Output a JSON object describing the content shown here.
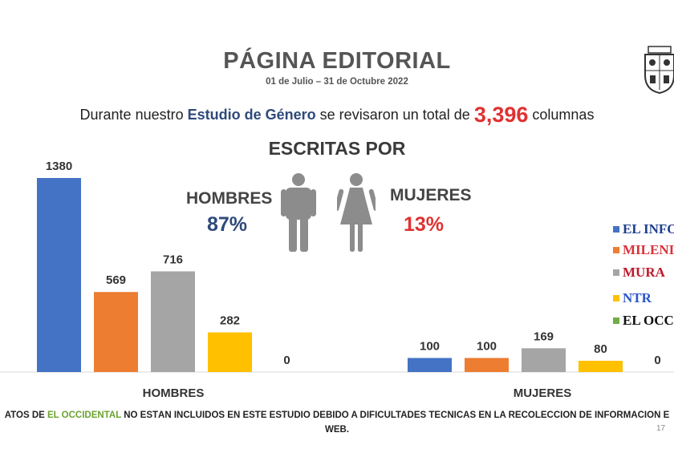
{
  "header": {
    "title": "PÁGINA EDITORIAL",
    "dates": "01 de Julio – 31 de Octubre 2022",
    "intro_prefix": "Durante nuestro",
    "intro_highlight": "Estudio de Género",
    "intro_mid": "se revisaron un total de",
    "intro_total": "3,396",
    "intro_suffix": "columnas",
    "subtitle": "ESCRITAS POR"
  },
  "gender": {
    "men_label": "HOMBRES",
    "men_pct": "87%",
    "women_label": "MUJERES",
    "women_pct": "13%"
  },
  "icons": {
    "men": "man-icon",
    "women": "woman-icon",
    "seal": "university-seal-icon"
  },
  "colors": {
    "el_informador": "#4472c4",
    "milenio": "#ed7d31",
    "mural": "#a5a5a5",
    "ntr": "#ffc000",
    "el_occidental": "#70ad47",
    "accent_blue": "#2e4a7a",
    "accent_red": "#e03131"
  },
  "legend": {
    "items": [
      {
        "text": "EL INFO",
        "color": "#4472c4",
        "text_color": "#1f3f8f"
      },
      {
        "text": "MILENI",
        "color": "#ed7d31",
        "text_color": "#d9313b"
      },
      {
        "text": "MURA",
        "color": "#a5a5a5",
        "text_color": "#c0182a"
      },
      {
        "text": "NTR",
        "color": "#ffc000",
        "text_color": "#2b56c8"
      },
      {
        "text": "EL OCCI",
        "color": "#70ad47",
        "text_color": "#111111"
      }
    ]
  },
  "chart_data": {
    "type": "bar",
    "categories": [
      "HOMBRES",
      "MUJERES"
    ],
    "series": [
      {
        "color": "#4472c4",
        "values": [
          1380,
          100
        ]
      },
      {
        "color": "#ed7d31",
        "values": [
          569,
          100
        ]
      },
      {
        "color": "#a5a5a5",
        "values": [
          716,
          169
        ]
      },
      {
        "color": "#ffc000",
        "values": [
          282,
          80
        ]
      },
      {
        "color": "#70ad47",
        "values": [
          0,
          0
        ]
      }
    ],
    "ylim": [
      0,
      1380
    ],
    "grid": false,
    "legend_position": "right"
  },
  "footnote": {
    "prefix": "ATOS DE",
    "highlight": "EL OCCIDENTAL",
    "suffix": "NO ESTÁN INCLUIDOS EN ESTE ESTUDIO DEBIDO A DIFICULTADES TÉCNICAS EN LA RECOLECCIÓN DE INFORMACIÓN E",
    "line2": "WEB."
  },
  "page_number": "17"
}
